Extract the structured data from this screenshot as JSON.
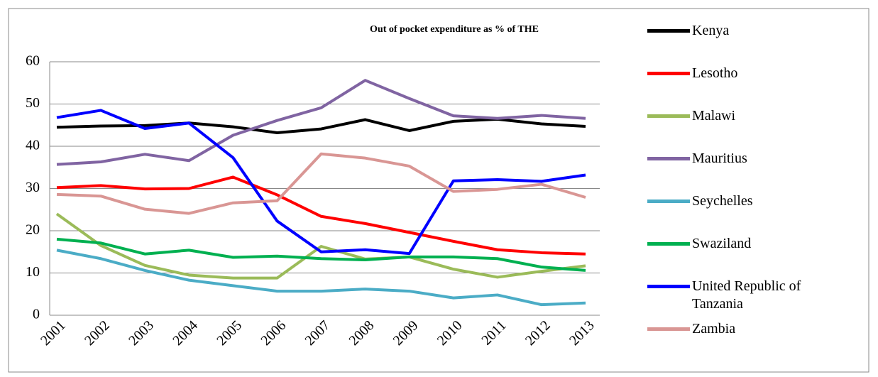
{
  "chart_data": {
    "type": "line",
    "title": "Out of pocket expenditure as % of THE",
    "categories": [
      "2001",
      "2002",
      "2003",
      "2004",
      "2005",
      "2006",
      "2007",
      "2008",
      "2009",
      "2010",
      "2011",
      "2012",
      "2013"
    ],
    "ylim": [
      0,
      60
    ],
    "yticks": [
      0,
      10,
      20,
      30,
      40,
      50,
      60
    ],
    "grid": true,
    "legend": "right",
    "series": [
      {
        "name": "Kenya",
        "color": "#000000",
        "values": [
          44.5,
          44.8,
          44.9,
          45.5,
          44.6,
          43.2,
          44.1,
          46.3,
          43.7,
          45.9,
          46.4,
          45.3,
          44.7
        ]
      },
      {
        "name": "Lesotho",
        "color": "#ff0000",
        "values": [
          30.2,
          30.7,
          29.9,
          30.0,
          32.7,
          28.5,
          23.4,
          21.7,
          19.6,
          17.5,
          15.5,
          14.8,
          14.5
        ]
      },
      {
        "name": "Malawi",
        "color": "#9bbb59",
        "values": [
          24.0,
          16.5,
          11.8,
          9.5,
          8.8,
          8.8,
          16.3,
          13.3,
          13.8,
          10.9,
          9.0,
          10.4,
          11.7
        ]
      },
      {
        "name": "Mauritius",
        "color": "#8064a2",
        "values": [
          35.7,
          36.3,
          38.1,
          36.6,
          42.6,
          46.1,
          49.1,
          55.6,
          51.3,
          47.2,
          46.6,
          47.3,
          46.6
        ]
      },
      {
        "name": "Seychelles",
        "color": "#4bacc6",
        "values": [
          15.4,
          13.4,
          10.6,
          8.3,
          7.0,
          5.7,
          5.7,
          6.2,
          5.7,
          4.1,
          4.8,
          2.5,
          2.9
        ]
      },
      {
        "name": "Swaziland",
        "color": "#00b050",
        "values": [
          18.0,
          17.1,
          14.5,
          15.4,
          13.7,
          14.0,
          13.4,
          13.1,
          13.8,
          13.8,
          13.4,
          11.4,
          10.6
        ]
      },
      {
        "name": "United Republic of Tanzania",
        "color": "#0000ff",
        "values": [
          46.8,
          48.5,
          44.2,
          45.5,
          37.3,
          22.3,
          15.0,
          15.5,
          14.6,
          31.8,
          32.1,
          31.7,
          33.2
        ]
      },
      {
        "name": "Zambia",
        "color": "#d99694",
        "values": [
          28.6,
          28.2,
          25.1,
          24.1,
          26.6,
          27.1,
          38.2,
          37.2,
          35.3,
          29.3,
          29.8,
          31.0,
          27.9
        ]
      }
    ]
  }
}
